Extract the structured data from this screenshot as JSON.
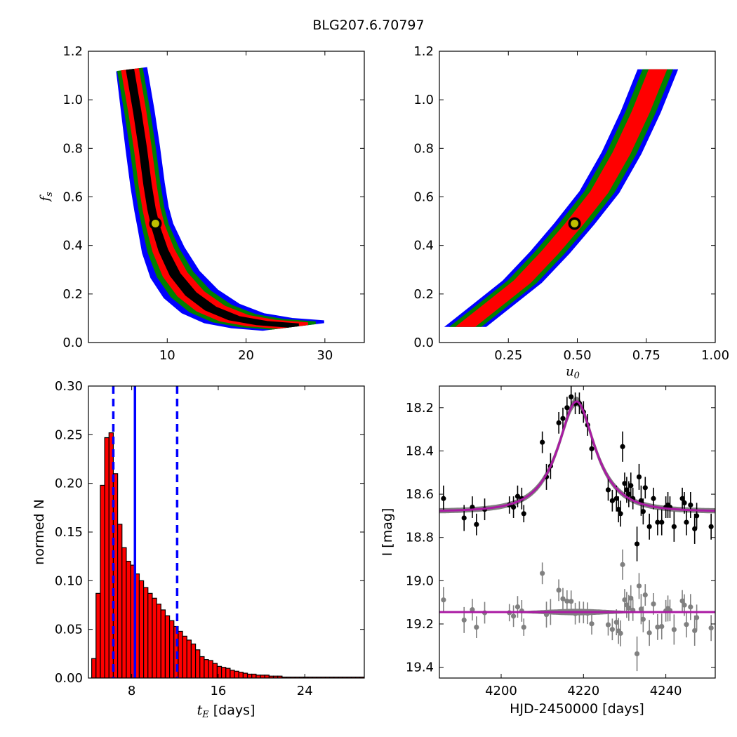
{
  "figure": {
    "title": "BLG207.6.70797",
    "colors": {
      "outer": "#0000ff",
      "middle": "#008000",
      "inner": "#ff0000",
      "core": "#000000",
      "hist_fill": "#ff0000",
      "fit_line": "#aa1aa3",
      "model_band": "#808080",
      "best_marker_fill": "#bfbf00",
      "quantile_lines": "#0000ff"
    }
  },
  "chart_data": [
    {
      "id": "tE-fs",
      "type": "heatmap",
      "xlabel": "",
      "ylabel": "f_s",
      "xlim": [
        0,
        35
      ],
      "ylim": [
        0.0,
        1.2
      ],
      "xticks": [
        10,
        20,
        30
      ],
      "xtick_labels": [
        "10",
        "20",
        "30"
      ],
      "yticks": [
        0.0,
        0.2,
        0.4,
        0.6,
        0.8,
        1.0,
        1.2
      ],
      "ytick_labels": [
        "0.0",
        "0.2",
        "0.4",
        "0.6",
        "0.8",
        "1.0",
        "1.2"
      ],
      "levels": [
        "outer",
        "middle",
        "inner",
        "core"
      ],
      "ridge": [
        [
          5.3,
          1.12
        ],
        [
          6.2,
          0.95
        ],
        [
          6.9,
          0.8
        ],
        [
          7.5,
          0.65
        ],
        [
          8.0,
          0.55
        ],
        [
          8.5,
          0.48
        ],
        [
          9.5,
          0.38
        ],
        [
          11.0,
          0.28
        ],
        [
          13.0,
          0.2
        ],
        [
          15.5,
          0.14
        ],
        [
          18.5,
          0.1
        ],
        [
          22.0,
          0.08
        ],
        [
          26.0,
          0.07
        ]
      ],
      "half_widths": {
        "outer": 2.0,
        "middle": 1.45,
        "inner": 0.95,
        "core": 0.35
      },
      "best_fit": [
        8.5,
        0.49
      ]
    },
    {
      "id": "u0-fs",
      "type": "heatmap",
      "xlabel": "u_0",
      "ylabel": "",
      "xlim": [
        0.0,
        1.0
      ],
      "ylim": [
        0.0,
        1.2
      ],
      "xticks": [
        0.25,
        0.5,
        0.75,
        1.0
      ],
      "xtick_labels": [
        "0.25",
        "0.50",
        "0.75",
        "1.00"
      ],
      "yticks": [
        0.0,
        0.2,
        0.4,
        0.6,
        0.8,
        1.0,
        1.2
      ],
      "ytick_labels": [
        "0.0",
        "0.2",
        "0.4",
        "0.6",
        "0.8",
        "1.0",
        "1.2"
      ],
      "levels": [
        "outer",
        "middle",
        "inner"
      ],
      "ridge": [
        [
          0.1,
          0.07
        ],
        [
          0.2,
          0.16
        ],
        [
          0.3,
          0.25
        ],
        [
          0.4,
          0.37
        ],
        [
          0.49,
          0.49
        ],
        [
          0.58,
          0.62
        ],
        [
          0.66,
          0.78
        ],
        [
          0.73,
          0.95
        ],
        [
          0.79,
          1.12
        ]
      ],
      "half_widths": {
        "outer": 0.068,
        "middle": 0.05,
        "inner": 0.028
      },
      "best_fit": [
        0.49,
        0.49
      ]
    },
    {
      "id": "tE-hist",
      "type": "bar",
      "xlabel": "t_E  [days]",
      "ylabel": "normed N",
      "xlim": [
        4,
        29.5
      ],
      "ylim": [
        0.0,
        0.3
      ],
      "xticks": [
        8,
        16,
        24
      ],
      "xtick_labels": [
        "8",
        "16",
        "24"
      ],
      "yticks": [
        0.0,
        0.05,
        0.1,
        0.15,
        0.2,
        0.25,
        0.3
      ],
      "ytick_labels": [
        "0.00",
        "0.05",
        "0.10",
        "0.15",
        "0.20",
        "0.25",
        "0.30"
      ],
      "bin_start": 4.3,
      "bin_width": 0.4,
      "values": [
        0.02,
        0.087,
        0.198,
        0.247,
        0.252,
        0.21,
        0.158,
        0.134,
        0.12,
        0.116,
        0.107,
        0.1,
        0.093,
        0.087,
        0.082,
        0.076,
        0.07,
        0.064,
        0.059,
        0.053,
        0.048,
        0.043,
        0.039,
        0.035,
        0.029,
        0.022,
        0.019,
        0.018,
        0.015,
        0.012,
        0.011,
        0.01,
        0.008,
        0.007,
        0.006,
        0.005,
        0.004,
        0.004,
        0.003,
        0.003,
        0.003,
        0.002,
        0.002,
        0.002,
        0.001,
        0.001,
        0.001,
        0.001,
        0.001,
        0.001,
        0.001,
        0.001,
        0.001,
        0.001,
        0.001,
        0.001,
        0.001,
        0.001,
        0.001,
        0.001,
        0.001,
        0.001,
        0.001,
        0.001
      ],
      "vlines": [
        {
          "x": 6.3,
          "style": "dashed"
        },
        {
          "x": 8.3,
          "style": "solid"
        },
        {
          "x": 12.2,
          "style": "dashed"
        }
      ]
    },
    {
      "id": "lightcurve",
      "type": "scatter",
      "xlabel": "HJD-2450000 [days]",
      "ylabel": "I [mag]",
      "xlim": [
        4185,
        4252
      ],
      "ylim": [
        19.45,
        18.1
      ],
      "xticks": [
        4200,
        4220,
        4240
      ],
      "xtick_labels": [
        "4200",
        "4220",
        "4240"
      ],
      "yticks": [
        18.2,
        18.4,
        18.6,
        18.8,
        19.0,
        19.2,
        19.4
      ],
      "ytick_labels": [
        "18.2",
        "18.4",
        "18.6",
        "18.8",
        "19.0",
        "19.2",
        "19.4"
      ],
      "model": {
        "t0": 4218.3,
        "tE": 8.5,
        "u0": 0.49,
        "fs": 0.49,
        "base_mag": 18.68
      },
      "residual_offset": 19.145,
      "data": [
        [
          4186,
          18.62,
          0.06
        ],
        [
          4191,
          18.71,
          0.06
        ],
        [
          4193,
          18.66,
          0.05
        ],
        [
          4194,
          18.74,
          0.05
        ],
        [
          4196,
          18.67,
          0.05
        ],
        [
          4202,
          18.65,
          0.04
        ],
        [
          4203,
          18.66,
          0.05
        ],
        [
          4204,
          18.61,
          0.05
        ],
        [
          4205,
          18.62,
          0.05
        ],
        [
          4205.5,
          18.69,
          0.04
        ],
        [
          4210,
          18.36,
          0.05
        ],
        [
          4211,
          18.52,
          0.06
        ],
        [
          4212,
          18.47,
          0.06
        ],
        [
          4214,
          18.27,
          0.05
        ],
        [
          4215,
          18.25,
          0.05
        ],
        [
          4216,
          18.2,
          0.05
        ],
        [
          4217,
          18.15,
          0.05
        ],
        [
          4218,
          18.18,
          0.05
        ],
        [
          4219,
          18.18,
          0.05
        ],
        [
          4220,
          18.22,
          0.05
        ],
        [
          4221,
          18.28,
          0.05
        ],
        [
          4222,
          18.39,
          0.05
        ],
        [
          4226,
          18.58,
          0.05
        ],
        [
          4227,
          18.63,
          0.05
        ],
        [
          4228,
          18.62,
          0.06
        ],
        [
          4228.5,
          18.67,
          0.06
        ],
        [
          4229,
          18.69,
          0.06
        ],
        [
          4229.5,
          18.38,
          0.07
        ],
        [
          4230,
          18.55,
          0.05
        ],
        [
          4230.5,
          18.58,
          0.06
        ],
        [
          4231,
          18.6,
          0.06
        ],
        [
          4231.5,
          18.56,
          0.06
        ],
        [
          4232,
          18.62,
          0.05
        ],
        [
          4233,
          18.83,
          0.08
        ],
        [
          4233.5,
          18.52,
          0.06
        ],
        [
          4234,
          18.63,
          0.07
        ],
        [
          4234.5,
          18.68,
          0.06
        ],
        [
          4235,
          18.57,
          0.05
        ],
        [
          4236,
          18.75,
          0.06
        ],
        [
          4237,
          18.62,
          0.05
        ],
        [
          4238,
          18.73,
          0.06
        ],
        [
          4239,
          18.73,
          0.06
        ],
        [
          4240,
          18.66,
          0.05
        ],
        [
          4240.5,
          18.65,
          0.06
        ],
        [
          4241,
          18.66,
          0.05
        ],
        [
          4242,
          18.75,
          0.07
        ],
        [
          4244,
          18.62,
          0.05
        ],
        [
          4244.5,
          18.64,
          0.05
        ],
        [
          4245,
          18.73,
          0.06
        ],
        [
          4246,
          18.65,
          0.06
        ],
        [
          4247,
          18.76,
          0.07
        ],
        [
          4247.5,
          18.7,
          0.06
        ],
        [
          4251,
          18.75,
          0.06
        ]
      ]
    }
  ]
}
